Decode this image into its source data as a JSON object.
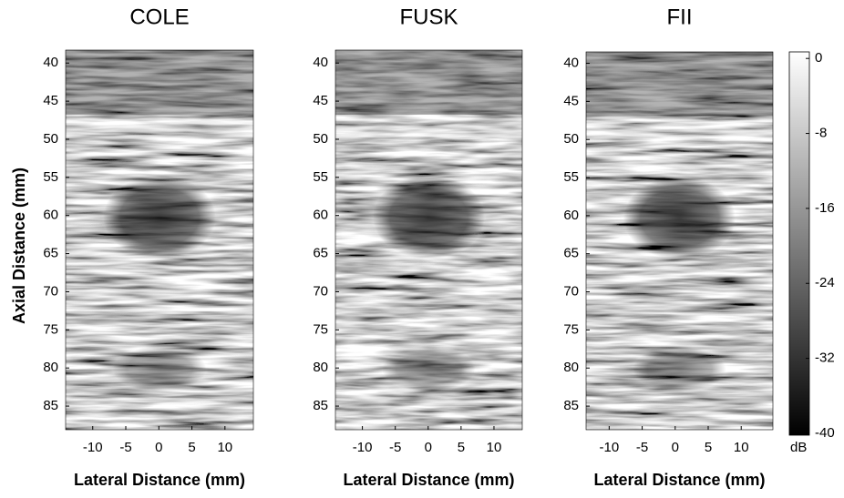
{
  "chart_data": [
    {
      "type": "image",
      "title": "COLE",
      "xlabel": "Lateral Distance (mm)",
      "ylabel": "Axial Distance (mm)",
      "xlim": [
        -14.1,
        14.3
      ],
      "xticks": [
        -10,
        -5,
        0,
        5,
        10
      ],
      "ylim": [
        38.3,
        88.1
      ],
      "yticks": [
        40,
        45,
        50,
        55,
        60,
        65,
        70,
        75,
        80,
        85
      ],
      "y_inverted": true
    },
    {
      "type": "image",
      "title": "FUSK",
      "xlabel": "Lateral Distance (mm)",
      "xlim": [
        -14.1,
        14.3
      ],
      "xticks": [
        -10,
        -5,
        0,
        5,
        10
      ],
      "ylim": [
        38.3,
        88.1
      ],
      "yticks": [
        40,
        45,
        50,
        55,
        60,
        65,
        70,
        75,
        80,
        85
      ],
      "y_inverted": true
    },
    {
      "type": "image",
      "title": "FII",
      "xlabel": "Lateral Distance (mm)",
      "xlim": [
        -13.5,
        14.8
      ],
      "xticks": [
        -10,
        -5,
        0,
        5,
        10
      ],
      "ylim": [
        38.5,
        88.1
      ],
      "yticks": [
        40,
        45,
        50,
        55,
        60,
        65,
        70,
        75,
        80,
        85
      ],
      "y_inverted": true,
      "colorbar": {
        "label": "dB",
        "lim": [
          0.7,
          -40.2
        ],
        "ticks": [
          0,
          -8,
          -16,
          -24,
          -32,
          -40
        ]
      }
    }
  ]
}
